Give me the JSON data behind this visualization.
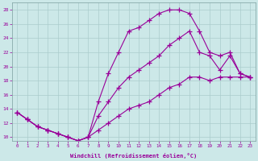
{
  "xlabel": "Windchill (Refroidissement éolien,°C)",
  "bg_color": "#cce8e8",
  "line_color": "#990099",
  "grid_color": "#aacccc",
  "xlim": [
    -0.5,
    23.5
  ],
  "ylim": [
    9.5,
    29.0
  ],
  "xticks": [
    0,
    1,
    2,
    3,
    4,
    5,
    6,
    7,
    8,
    9,
    10,
    11,
    12,
    13,
    14,
    15,
    16,
    17,
    18,
    19,
    20,
    21,
    22,
    23
  ],
  "yticks": [
    10,
    12,
    14,
    16,
    18,
    20,
    22,
    24,
    26,
    28
  ],
  "line1_x": [
    0,
    1,
    2,
    3,
    4,
    5,
    6,
    7,
    8,
    9,
    10,
    11,
    12,
    13,
    14,
    15,
    16,
    17,
    18,
    19,
    20,
    21,
    22,
    23
  ],
  "line1_y": [
    13.5,
    12.5,
    11.5,
    11.0,
    10.5,
    10.0,
    9.5,
    10.0,
    15.0,
    19.0,
    22.0,
    25.0,
    25.5,
    26.5,
    27.5,
    28.0,
    28.0,
    27.5,
    25.0,
    22.0,
    21.5,
    22.0,
    19.0,
    18.5
  ],
  "line2_x": [
    0,
    1,
    2,
    3,
    4,
    5,
    6,
    7,
    8,
    9,
    10,
    11,
    12,
    13,
    14,
    15,
    16,
    17,
    18,
    19,
    20,
    21,
    22,
    23
  ],
  "line2_y": [
    13.5,
    12.5,
    11.5,
    11.0,
    10.5,
    10.0,
    9.5,
    10.0,
    13.0,
    15.0,
    17.0,
    18.5,
    19.5,
    20.5,
    21.5,
    23.0,
    24.0,
    25.0,
    22.0,
    21.5,
    19.5,
    21.5,
    19.0,
    18.5
  ],
  "line3_x": [
    0,
    1,
    2,
    3,
    4,
    5,
    6,
    7,
    8,
    9,
    10,
    11,
    12,
    13,
    14,
    15,
    16,
    17,
    18,
    19,
    20,
    21,
    22,
    23
  ],
  "line3_y": [
    13.5,
    12.5,
    11.5,
    11.0,
    10.5,
    10.0,
    9.5,
    10.0,
    11.0,
    12.0,
    13.0,
    14.0,
    14.5,
    15.0,
    16.0,
    17.0,
    17.5,
    18.5,
    18.5,
    18.0,
    18.5,
    18.5,
    18.5,
    18.5
  ]
}
